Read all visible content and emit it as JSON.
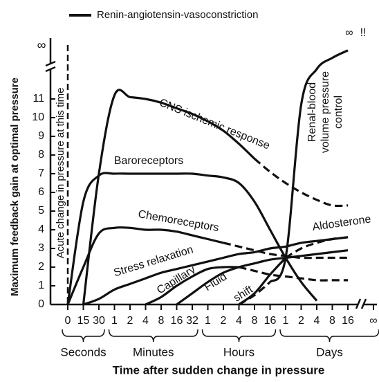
{
  "chart_data": {
    "type": "line",
    "legend_label": "Renin-angiotensin-vasoconstriction",
    "x_label": "Time after sudden change in pressure",
    "y_label": "Maximum feedback gain at optimal pressure",
    "y_break_label": "∞",
    "categories": [
      "0",
      "15",
      "30",
      "1",
      "2",
      "4",
      "8",
      "16",
      "32",
      "1",
      "2",
      "4",
      "8",
      "16",
      "1",
      "2",
      "4",
      "8",
      "16",
      "∞"
    ],
    "groups": [
      {
        "label": "Seconds",
        "start": 0,
        "end": 2
      },
      {
        "label": "Minutes",
        "start": 3,
        "end": 8
      },
      {
        "label": "Hours",
        "start": 9,
        "end": 13
      },
      {
        "label": "Days",
        "start": 14,
        "end": 19
      }
    ],
    "ylim": [
      0,
      14
    ],
    "yticks": [
      0,
      1,
      2,
      3,
      4,
      5,
      6,
      7,
      8,
      9,
      10,
      11
    ],
    "series": [
      {
        "name": "CNS ischemic response",
        "color": "#111111",
        "dash_from": 12,
        "values": [
          null,
          0,
          7,
          11.2,
          11.1,
          11,
          10.8,
          10.5,
          10.2,
          9.8,
          9.3,
          8.6,
          7.8,
          7.1,
          6.5,
          6,
          5.6,
          5.3,
          5.3,
          null
        ]
      },
      {
        "name": "Baroreceptors",
        "color": "#111111",
        "values": [
          0,
          5.5,
          6.9,
          7,
          7,
          7,
          7,
          7,
          7,
          6.9,
          6.8,
          6.5,
          5.5,
          4,
          2.5,
          1.2,
          0.2,
          null,
          null,
          null
        ]
      },
      {
        "name": "Chemoreceptors",
        "color": "#111111",
        "dash_from": 10,
        "values": [
          0,
          2,
          3.8,
          4.1,
          4.1,
          4,
          4,
          3.9,
          3.7,
          3.5,
          3.3,
          3.1,
          2.9,
          2.7,
          2.6,
          2.5,
          2.5,
          2.5,
          2.5,
          null
        ]
      },
      {
        "name": "Stress relaxation",
        "color": "#111111",
        "values": [
          null,
          0,
          0.3,
          0.8,
          1.1,
          1.4,
          1.7,
          1.9,
          2.1,
          2.3,
          2.5,
          2.7,
          2.8,
          3,
          3.1,
          3.3,
          3.4,
          3.5,
          3.6,
          null
        ]
      },
      {
        "name": "Capillary fluid shift",
        "color": "#111111",
        "dash_from": 11,
        "values": [
          null,
          null,
          null,
          null,
          null,
          0,
          0.4,
          1,
          1.5,
          1.9,
          2,
          2,
          1.8,
          1.6,
          1.5,
          1.4,
          1.3,
          1.3,
          1.3,
          null
        ]
      },
      {
        "name": "Aldosterone",
        "color": "#111111",
        "dash_from": 14,
        "values": [
          null,
          null,
          null,
          null,
          null,
          null,
          null,
          null,
          null,
          null,
          null,
          0,
          0.6,
          1.6,
          2.5,
          3,
          3.3,
          3.5,
          3.6,
          null
        ]
      },
      {
        "name": "Renin-angiotensin-vasoconstriction",
        "color": "#111111",
        "values": [
          null,
          null,
          null,
          null,
          null,
          null,
          null,
          0,
          0.6,
          1.2,
          1.7,
          2,
          2.2,
          2.4,
          2.5,
          2.6,
          2.7,
          2.8,
          2.9,
          null
        ]
      },
      {
        "name": "Renal-blood volume pressure control",
        "color": "#111111",
        "dash_from": 0,
        "solid_from": 13,
        "values": [
          null,
          null,
          null,
          null,
          null,
          null,
          null,
          null,
          null,
          null,
          null,
          0,
          0.5,
          1.2,
          2.5,
          10.7,
          12.6,
          13.2,
          13.6,
          null
        ]
      }
    ],
    "annotations": [
      "CNS ischemic response",
      "Baroreceptors",
      "Chemoreceptors",
      "Stress relaxation",
      "Capillary",
      "Fluid",
      "shift",
      "Aldosterone",
      "Renal-blood",
      "volume pressure",
      "control",
      "Acute change in pressure at this time",
      "∞",
      "!!"
    ]
  }
}
